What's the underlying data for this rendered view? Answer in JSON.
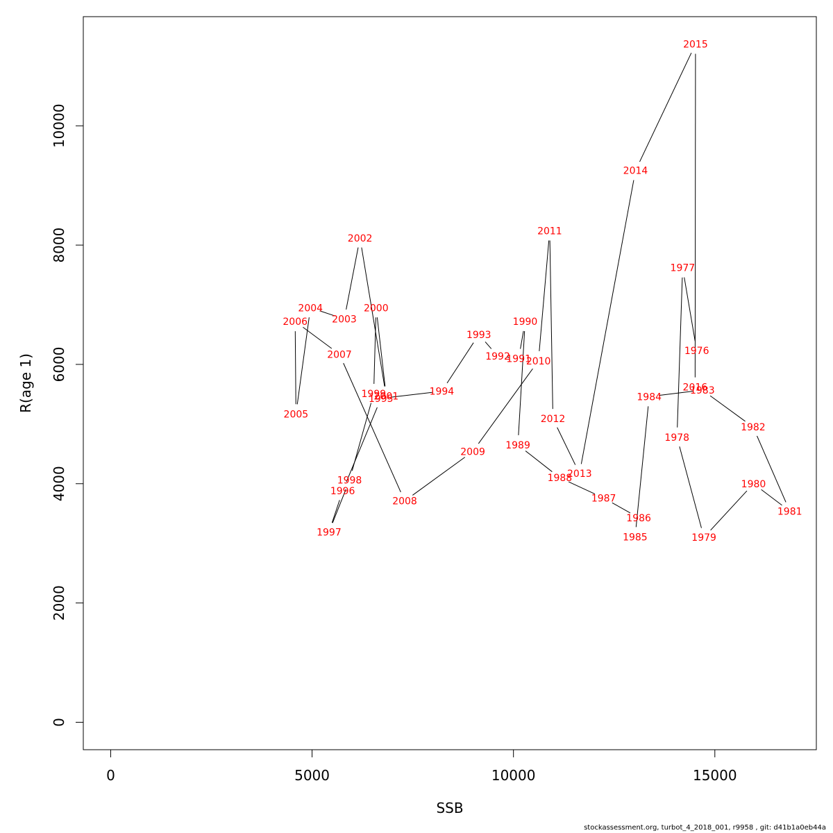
{
  "chart_data": {
    "type": "line",
    "xlabel": "SSB",
    "ylabel": "R(age 1)",
    "xlim": [
      -680,
      17520
    ],
    "ylim": [
      -460,
      11830
    ],
    "xticks": [
      0,
      5000,
      10000,
      15000
    ],
    "xtick_labels": [
      "0",
      "5000",
      "10000",
      "15000"
    ],
    "yticks": [
      0,
      2000,
      4000,
      6000,
      8000,
      10000
    ],
    "ytick_labels": [
      "0",
      "2000",
      "4000",
      "6000",
      "8000",
      "10000"
    ],
    "grid": false,
    "point_label_color": "#ff0000",
    "line_color": "#000000",
    "points": [
      {
        "year": "1976",
        "ssb": 14550,
        "r": 6230
      },
      {
        "year": "1977",
        "ssb": 14200,
        "r": 7620
      },
      {
        "year": "1978",
        "ssb": 14060,
        "r": 4780
      },
      {
        "year": "1979",
        "ssb": 14730,
        "r": 3100
      },
      {
        "year": "1980",
        "ssb": 15960,
        "r": 4000
      },
      {
        "year": "1981",
        "ssb": 16860,
        "r": 3540
      },
      {
        "year": "1982",
        "ssb": 15950,
        "r": 4950
      },
      {
        "year": "1983",
        "ssb": 14690,
        "r": 5570
      },
      {
        "year": "1984",
        "ssb": 13370,
        "r": 5460
      },
      {
        "year": "1985",
        "ssb": 13020,
        "r": 3110
      },
      {
        "year": "1986",
        "ssb": 13110,
        "r": 3430
      },
      {
        "year": "1987",
        "ssb": 12240,
        "r": 3760
      },
      {
        "year": "1988",
        "ssb": 11150,
        "r": 4100
      },
      {
        "year": "1989",
        "ssb": 10110,
        "r": 4650
      },
      {
        "year": "1990",
        "ssb": 10290,
        "r": 6720
      },
      {
        "year": "1991",
        "ssb": 10130,
        "r": 6100
      },
      {
        "year": "1992",
        "ssb": 9610,
        "r": 6140
      },
      {
        "year": "1993",
        "ssb": 9140,
        "r": 6500
      },
      {
        "year": "1994",
        "ssb": 8220,
        "r": 5550
      },
      {
        "year": "1995",
        "ssb": 6710,
        "r": 5430
      },
      {
        "year": "1996",
        "ssb": 5760,
        "r": 3880
      },
      {
        "year": "1997",
        "ssb": 5420,
        "r": 3190
      },
      {
        "year": "1998",
        "ssb": 5930,
        "r": 4060
      },
      {
        "year": "1999",
        "ssb": 6530,
        "r": 5510
      },
      {
        "year": "2000",
        "ssb": 6590,
        "r": 6950
      },
      {
        "year": "2001",
        "ssb": 6840,
        "r": 5470
      },
      {
        "year": "2002",
        "ssb": 6190,
        "r": 8120
      },
      {
        "year": "2003",
        "ssb": 5800,
        "r": 6760
      },
      {
        "year": "2004",
        "ssb": 4960,
        "r": 6950
      },
      {
        "year": "2005",
        "ssb": 4600,
        "r": 5170
      },
      {
        "year": "2006",
        "ssb": 4580,
        "r": 6720
      },
      {
        "year": "2007",
        "ssb": 5680,
        "r": 6170
      },
      {
        "year": "2008",
        "ssb": 7300,
        "r": 3710
      },
      {
        "year": "2009",
        "ssb": 8990,
        "r": 4540
      },
      {
        "year": "2010",
        "ssb": 10620,
        "r": 6060
      },
      {
        "year": "2011",
        "ssb": 10900,
        "r": 8240
      },
      {
        "year": "2012",
        "ssb": 10980,
        "r": 5090
      },
      {
        "year": "2013",
        "ssb": 11640,
        "r": 4170
      },
      {
        "year": "2014",
        "ssb": 13030,
        "r": 9250
      },
      {
        "year": "2015",
        "ssb": 14520,
        "r": 11370
      },
      {
        "year": "2016",
        "ssb": 14510,
        "r": 5620
      }
    ]
  },
  "footer": {
    "text": "stockassessment.org, turbot_4_2018_001, r9958 , git: d41b1a0eb44a"
  }
}
